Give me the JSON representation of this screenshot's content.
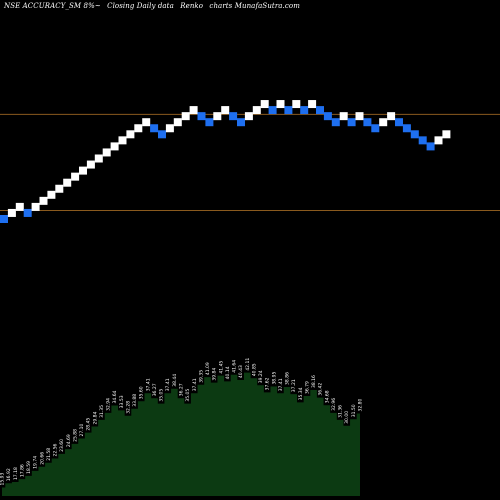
{
  "header": {
    "symbol": "NSE ACCURACY_SM 8%~",
    "description": "Closing Daily data",
    "chart_kind": "Renko",
    "site": "charts MunafaSutra.com"
  },
  "colors": {
    "background": "#000000",
    "up_brick": "#ffffff",
    "down_brick": "#1e6ff0",
    "ref_line": "#8a5a1e",
    "area_fill": "#0c3a12",
    "area_top": "#0c3a12"
  },
  "chart_data": [
    {
      "type": "renko",
      "brick_size_pct": 8,
      "reference_lines": [
        {
          "row": 17.3
        },
        {
          "row": 1.4
        }
      ],
      "bricks": [
        {
          "row": 0,
          "dir": "down"
        },
        {
          "row": 1,
          "dir": "up"
        },
        {
          "row": 2,
          "dir": "up"
        },
        {
          "row": 1,
          "dir": "down"
        },
        {
          "row": 2,
          "dir": "up"
        },
        {
          "row": 3,
          "dir": "up"
        },
        {
          "row": 4,
          "dir": "up"
        },
        {
          "row": 5,
          "dir": "up"
        },
        {
          "row": 6,
          "dir": "up"
        },
        {
          "row": 7,
          "dir": "up"
        },
        {
          "row": 8,
          "dir": "up"
        },
        {
          "row": 9,
          "dir": "up"
        },
        {
          "row": 10,
          "dir": "up"
        },
        {
          "row": 11,
          "dir": "up"
        },
        {
          "row": 12,
          "dir": "up"
        },
        {
          "row": 13,
          "dir": "up"
        },
        {
          "row": 14,
          "dir": "up"
        },
        {
          "row": 15,
          "dir": "up"
        },
        {
          "row": 16,
          "dir": "up"
        },
        {
          "row": 15,
          "dir": "down"
        },
        {
          "row": 14,
          "dir": "down"
        },
        {
          "row": 15,
          "dir": "up"
        },
        {
          "row": 16,
          "dir": "up"
        },
        {
          "row": 17,
          "dir": "up"
        },
        {
          "row": 18,
          "dir": "up"
        },
        {
          "row": 17,
          "dir": "down"
        },
        {
          "row": 16,
          "dir": "down"
        },
        {
          "row": 17,
          "dir": "up"
        },
        {
          "row": 18,
          "dir": "up"
        },
        {
          "row": 17,
          "dir": "down"
        },
        {
          "row": 16,
          "dir": "down"
        },
        {
          "row": 17,
          "dir": "up"
        },
        {
          "row": 18,
          "dir": "up"
        },
        {
          "row": 19,
          "dir": "up"
        },
        {
          "row": 18,
          "dir": "down"
        },
        {
          "row": 19,
          "dir": "up"
        },
        {
          "row": 18,
          "dir": "down"
        },
        {
          "row": 19,
          "dir": "up"
        },
        {
          "row": 18,
          "dir": "down"
        },
        {
          "row": 19,
          "dir": "up"
        },
        {
          "row": 18,
          "dir": "down"
        },
        {
          "row": 17,
          "dir": "down"
        },
        {
          "row": 16,
          "dir": "down"
        },
        {
          "row": 17,
          "dir": "up"
        },
        {
          "row": 16,
          "dir": "down"
        },
        {
          "row": 17,
          "dir": "up"
        },
        {
          "row": 16,
          "dir": "down"
        },
        {
          "row": 15,
          "dir": "down"
        },
        {
          "row": 16,
          "dir": "up"
        },
        {
          "row": 17,
          "dir": "up"
        },
        {
          "row": 16,
          "dir": "down"
        },
        {
          "row": 15,
          "dir": "down"
        },
        {
          "row": 14,
          "dir": "down"
        },
        {
          "row": 13,
          "dir": "down"
        },
        {
          "row": 12,
          "dir": "down"
        },
        {
          "row": 13,
          "dir": "up"
        },
        {
          "row": 14,
          "dir": "up"
        }
      ]
    },
    {
      "type": "area",
      "labels": [
        "15.93",
        "16.92",
        "17.18",
        "17.86",
        "18.59",
        "19.74",
        "20.66",
        "21.58",
        "22.56",
        "23.60",
        "24.69",
        "25.88",
        "27.10",
        "28.45",
        "29.84",
        "31.35",
        "32.94",
        "34.64",
        "33.53",
        "32.28",
        "33.88",
        "35.60",
        "37.41",
        "36.27",
        "35.05",
        "37.41",
        "38.44",
        "36.27",
        "35.05",
        "37.41",
        "39.35",
        "41.09",
        "39.84",
        "41.45",
        "40.14",
        "41.64",
        "40.43",
        "42.11",
        "40.85",
        "39.24",
        "37.62",
        "38.95",
        "37.41",
        "38.86",
        "37.21",
        "35.34",
        "36.79",
        "38.16",
        "36.42",
        "34.68",
        "32.96",
        "31.36",
        "30.00",
        "31.50",
        "32.80"
      ],
      "values": [
        15.93,
        16.92,
        17.18,
        17.86,
        18.59,
        19.74,
        20.66,
        21.58,
        22.56,
        23.6,
        24.69,
        25.88,
        27.1,
        28.45,
        29.84,
        31.35,
        32.94,
        34.64,
        33.53,
        32.28,
        33.88,
        35.6,
        37.41,
        36.27,
        35.05,
        37.41,
        38.44,
        36.27,
        35.05,
        37.41,
        39.35,
        41.09,
        39.84,
        41.45,
        40.14,
        41.64,
        40.43,
        42.11,
        40.85,
        39.24,
        37.62,
        38.95,
        37.41,
        38.86,
        37.21,
        35.34,
        36.79,
        38.16,
        36.42,
        34.68,
        32.96,
        31.36,
        30.0,
        31.5,
        32.8
      ]
    }
  ]
}
